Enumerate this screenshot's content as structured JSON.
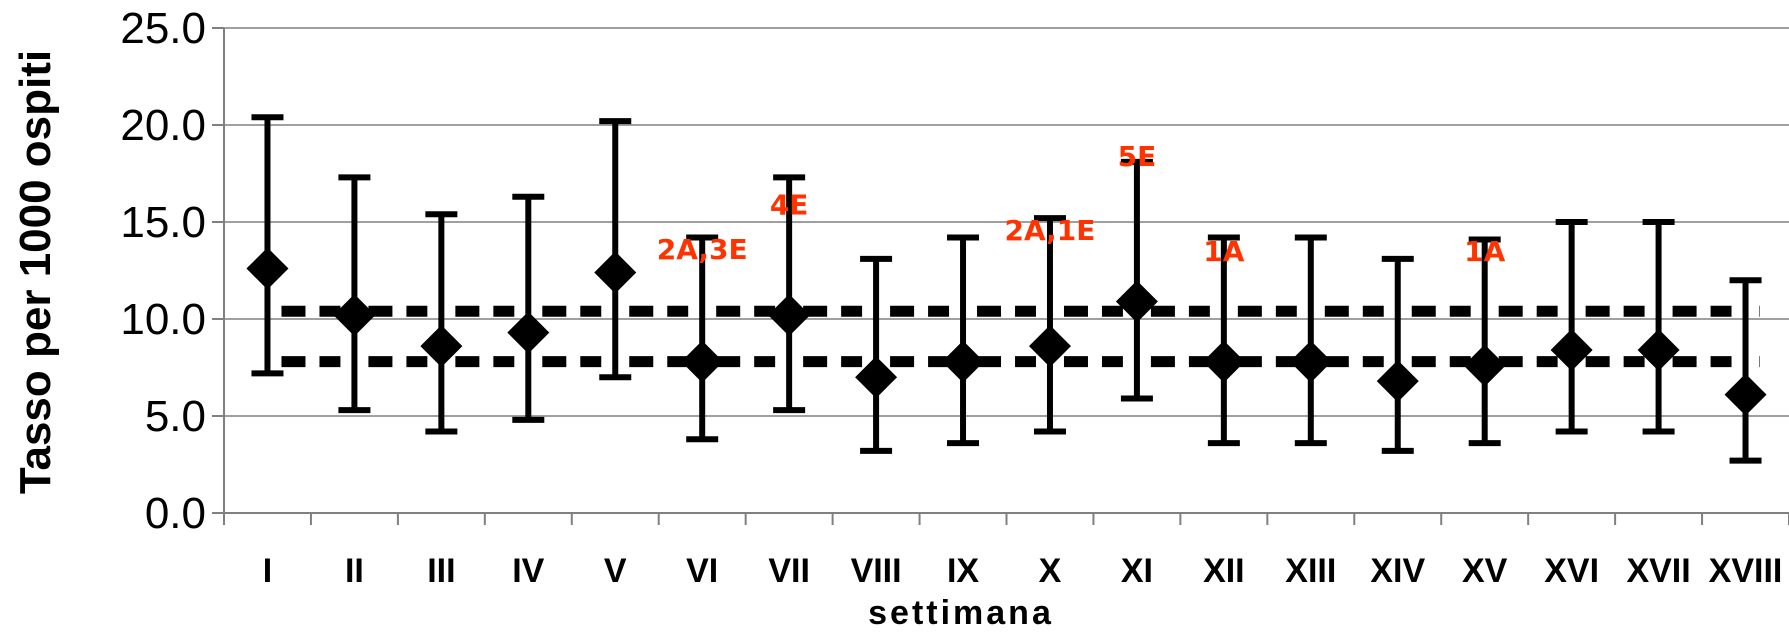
{
  "chart_data": {
    "type": "scatter",
    "title": "",
    "xlabel": "settimana",
    "ylabel": "Tasso per 1000 ospiti",
    "ylim": [
      0,
      25
    ],
    "yticks": [
      "0.0",
      "5.0",
      "10.0",
      "15.0",
      "20.0",
      "25.0"
    ],
    "grid": true,
    "legend": "none",
    "marker": "diamond",
    "categories": [
      "I",
      "II",
      "III",
      "IV",
      "V",
      "VI",
      "VII",
      "VIII",
      "IX",
      "X",
      "XI",
      "XII",
      "XIII",
      "XIV",
      "XV",
      "XVI",
      "XVII",
      "XVIII"
    ],
    "series": [
      {
        "values": [
          12.6,
          10.2,
          8.6,
          9.3,
          12.4,
          7.8,
          10.2,
          7.0,
          7.8,
          8.6,
          10.9,
          7.8,
          7.8,
          6.8,
          7.6,
          8.4,
          8.4,
          6.1
        ],
        "lower": [
          7.2,
          5.3,
          4.2,
          4.8,
          7.0,
          3.8,
          5.3,
          3.2,
          3.6,
          4.2,
          5.9,
          3.6,
          3.6,
          3.2,
          3.6,
          4.2,
          4.2,
          2.7
        ],
        "upper": [
          20.4,
          17.3,
          15.4,
          16.3,
          20.2,
          14.2,
          17.3,
          13.1,
          14.2,
          15.2,
          18.1,
          14.2,
          14.2,
          13.1,
          14.1,
          15.0,
          15.0,
          12.0
        ]
      }
    ],
    "reference_lines": [
      10.4,
      7.8
    ],
    "annotations": [
      {
        "category": "VI",
        "text": "2A,3E",
        "y": 13.6
      },
      {
        "category": "VII",
        "text": "4E",
        "y": 15.9
      },
      {
        "category": "X",
        "text": "2A,1E",
        "y": 14.6
      },
      {
        "category": "XI",
        "text": "5E",
        "y": 18.4
      },
      {
        "category": "XII",
        "text": "1A",
        "y": 13.5
      },
      {
        "category": "XV",
        "text": "1A",
        "y": 13.5
      }
    ],
    "colors": {
      "marks": "#000000",
      "annotation": "#ff3300",
      "grid": "#808080"
    }
  }
}
